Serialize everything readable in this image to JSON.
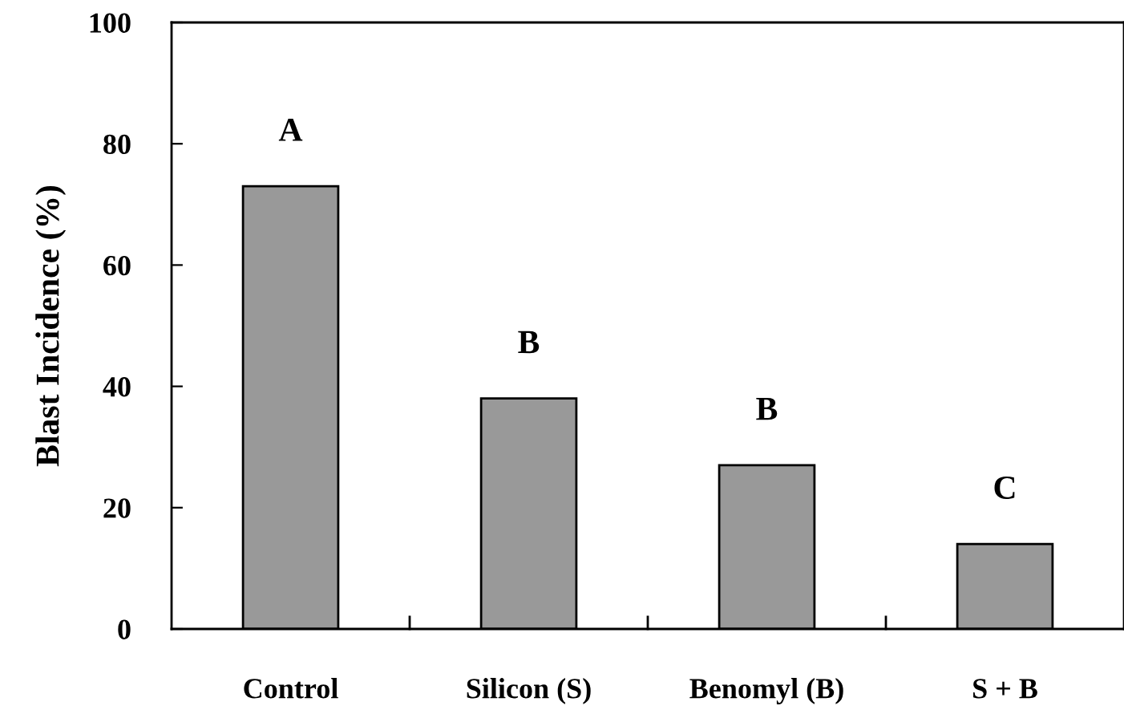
{
  "chart_data": {
    "type": "bar",
    "ylabel": "Blast Incidence (%)",
    "categories": [
      "Control",
      "Silicon (S)",
      "Benomyl (B)",
      "S + B"
    ],
    "values": [
      73,
      38,
      27,
      14
    ],
    "color": "#999999",
    "ylim": [
      0,
      100
    ],
    "yticks": [
      0,
      20,
      40,
      60,
      80,
      100
    ],
    "grid": false,
    "annotations": [
      "A",
      "B",
      "B",
      "C"
    ]
  }
}
